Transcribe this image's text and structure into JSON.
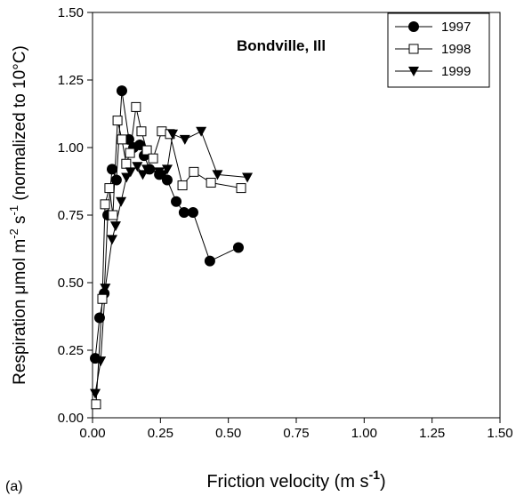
{
  "chart_data": {
    "type": "line",
    "annotation": "Bondville, Ill",
    "panel_label": "(a)",
    "xlabel": [
      "Friction velocity (m s",
      "-1",
      ")"
    ],
    "ylabel": [
      "Respiration μmol m",
      "-2",
      " s",
      "-1",
      " (normalized to 10°C)"
    ],
    "xlim": [
      0,
      1.5
    ],
    "ylim": [
      0,
      1.5
    ],
    "xticks": [
      {
        "value": 0,
        "label": "0.00"
      },
      {
        "value": 0.25,
        "label": "0.25"
      },
      {
        "value": 0.5,
        "label": "0.50"
      },
      {
        "value": 0.75,
        "label": "0.75"
      },
      {
        "value": 1,
        "label": "1.00"
      },
      {
        "value": 1.25,
        "label": "1.25"
      },
      {
        "value": 1.5,
        "label": "1.50"
      }
    ],
    "yticks": [
      {
        "value": 0,
        "label": "0.00"
      },
      {
        "value": 0.25,
        "label": "0.25"
      },
      {
        "value": 0.5,
        "label": "0.50"
      },
      {
        "value": 0.75,
        "label": "0.75"
      },
      {
        "value": 1,
        "label": "1.00"
      },
      {
        "value": 1.25,
        "label": "1.25"
      },
      {
        "value": 1.5,
        "label": "1.50"
      }
    ],
    "legend": "upper right",
    "series": [
      {
        "name": "1997",
        "color": "#000000",
        "marker": "circle",
        "x": [
          0.01,
          0.026,
          0.043,
          0.056,
          0.072,
          0.088,
          0.108,
          0.134,
          0.151,
          0.174,
          0.19,
          0.21,
          0.246,
          0.275,
          0.308,
          0.337,
          0.37,
          0.432,
          0.537
        ],
        "values": [
          0.22,
          0.37,
          0.46,
          0.75,
          0.92,
          0.88,
          1.21,
          1.03,
          1.0,
          1.01,
          0.97,
          0.92,
          0.9,
          0.88,
          0.8,
          0.76,
          0.76,
          0.58,
          0.63
        ]
      },
      {
        "name": "1998",
        "color": "#000000",
        "marker": "square",
        "x": [
          0.013,
          0.036,
          0.046,
          0.062,
          0.075,
          0.092,
          0.108,
          0.124,
          0.138,
          0.16,
          0.18,
          0.2,
          0.223,
          0.255,
          0.285,
          0.331,
          0.373,
          0.436,
          0.547
        ],
        "values": [
          0.05,
          0.44,
          0.79,
          0.85,
          0.75,
          1.1,
          1.03,
          0.94,
          0.98,
          1.15,
          1.06,
          0.99,
          0.96,
          1.06,
          1.05,
          0.86,
          0.91,
          0.87,
          0.85
        ]
      },
      {
        "name": "1999",
        "color": "#000000",
        "marker": "triangle",
        "x": [
          0.01,
          0.03,
          0.047,
          0.072,
          0.085,
          0.105,
          0.125,
          0.14,
          0.165,
          0.185,
          0.2,
          0.245,
          0.26,
          0.275,
          0.295,
          0.34,
          0.4,
          0.46,
          0.57
        ],
        "values": [
          0.09,
          0.21,
          0.48,
          0.66,
          0.71,
          0.8,
          0.89,
          0.91,
          0.93,
          0.9,
          0.92,
          0.91,
          0.9,
          0.92,
          1.05,
          1.03,
          1.06,
          0.9,
          0.89
        ]
      }
    ]
  }
}
